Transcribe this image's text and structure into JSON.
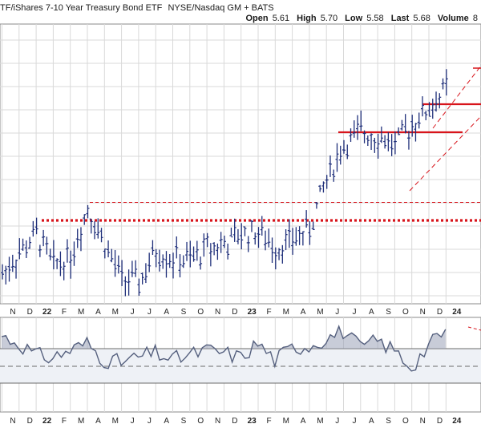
{
  "header": {
    "title": "TF/iShares 7-10 Year Treasury Bond ETF",
    "exchange": "NYSE/Nasdaq GM + BATS",
    "quote": [
      {
        "label": "Open",
        "value": "5.61"
      },
      {
        "label": "High",
        "value": "5.70"
      },
      {
        "label": "Low",
        "value": "5.58"
      },
      {
        "label": "Last",
        "value": "5.68"
      },
      {
        "label": "Volume",
        "value": "8"
      }
    ]
  },
  "colors": {
    "bar": "#1f2f7a",
    "support": "#d8141b",
    "indicator_line": "#55607e",
    "indicator_fill": "#9aa3b8",
    "grid": "#d9d9d9",
    "panel_bg": "#eef1f6"
  },
  "x_axis": {
    "labels": [
      "N",
      "D",
      "22",
      "F",
      "M",
      "A",
      "M",
      "J",
      "J",
      "A",
      "S",
      "O",
      "N",
      "D",
      "23",
      "F",
      "M",
      "A",
      "M",
      "J",
      "J",
      "A",
      "S",
      "O",
      "N",
      "D",
      "24"
    ],
    "bold_labels": [
      "22",
      "23",
      "24"
    ]
  },
  "chart_data": [
    {
      "type": "ohlc",
      "panel": "price",
      "x": [
        "2021-11",
        "2021-12",
        "2022-01",
        "2022-02",
        "2022-03",
        "2022-04",
        "2022-05",
        "2022-06",
        "2022-07",
        "2022-08",
        "2022-09",
        "2022-10",
        "2022-11",
        "2022-12",
        "2023-01",
        "2023-02",
        "2023-03",
        "2023-04",
        "2023-05",
        "2023-06",
        "2023-07",
        "2023-08",
        "2023-09",
        "2023-10",
        "2023-11",
        "2023-12",
        "2024-01"
      ],
      "y_relative": [
        0.07,
        0.18,
        0.27,
        0.12,
        0.16,
        0.4,
        0.22,
        0.05,
        0.03,
        0.18,
        0.15,
        0.14,
        0.2,
        0.22,
        0.27,
        0.28,
        0.2,
        0.24,
        0.3,
        0.55,
        0.72,
        0.78,
        0.76,
        0.72,
        0.82,
        0.9,
        1.0
      ],
      "grid": true,
      "annotations": [
        {
          "type": "horizontal-line",
          "style": "dotted",
          "level_relative": 0.34
        },
        {
          "type": "horizontal-line",
          "style": "dashed",
          "level_relative": 0.43
        },
        {
          "type": "horizontal-line",
          "style": "solid",
          "level_relative": 0.78
        },
        {
          "type": "horizontal-line",
          "style": "solid",
          "level_relative": 0.92
        },
        {
          "type": "trend-channel",
          "style": "dashed"
        }
      ]
    },
    {
      "type": "line",
      "panel": "indicator",
      "x": [
        "2021-11",
        "2021-12",
        "2022-01",
        "2022-02",
        "2022-03",
        "2022-04",
        "2022-05",
        "2022-06",
        "2022-07",
        "2022-08",
        "2022-09",
        "2022-10",
        "2022-11",
        "2022-12",
        "2023-01",
        "2023-02",
        "2023-03",
        "2023-04",
        "2023-05",
        "2023-06",
        "2023-07",
        "2023-08",
        "2023-09",
        "2023-10",
        "2023-11",
        "2023-12",
        "2024-01"
      ],
      "y_relative": [
        0.85,
        0.7,
        0.45,
        0.4,
        0.55,
        0.7,
        0.35,
        0.3,
        0.4,
        0.5,
        0.35,
        0.45,
        0.55,
        0.5,
        0.4,
        0.7,
        0.35,
        0.6,
        0.65,
        0.8,
        0.95,
        0.6,
        0.75,
        0.55,
        0.2,
        0.65,
        0.95
      ],
      "grid": true
    }
  ]
}
